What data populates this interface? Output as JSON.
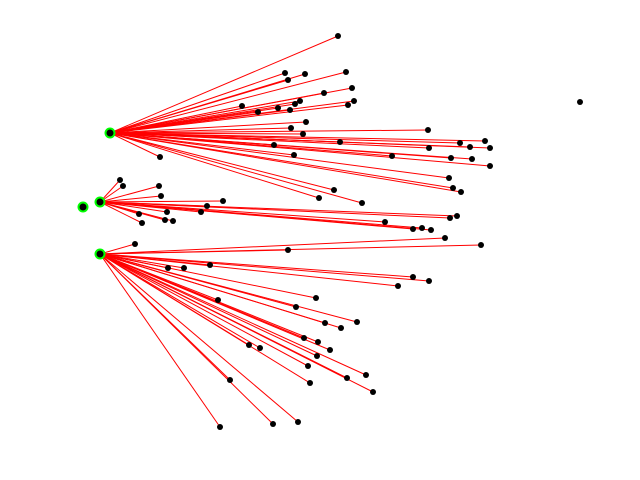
{
  "colors": {
    "background": "#ffffff",
    "edge": "#ff0000",
    "node": "#000000",
    "hub_ring": "#00ff00"
  }
}
